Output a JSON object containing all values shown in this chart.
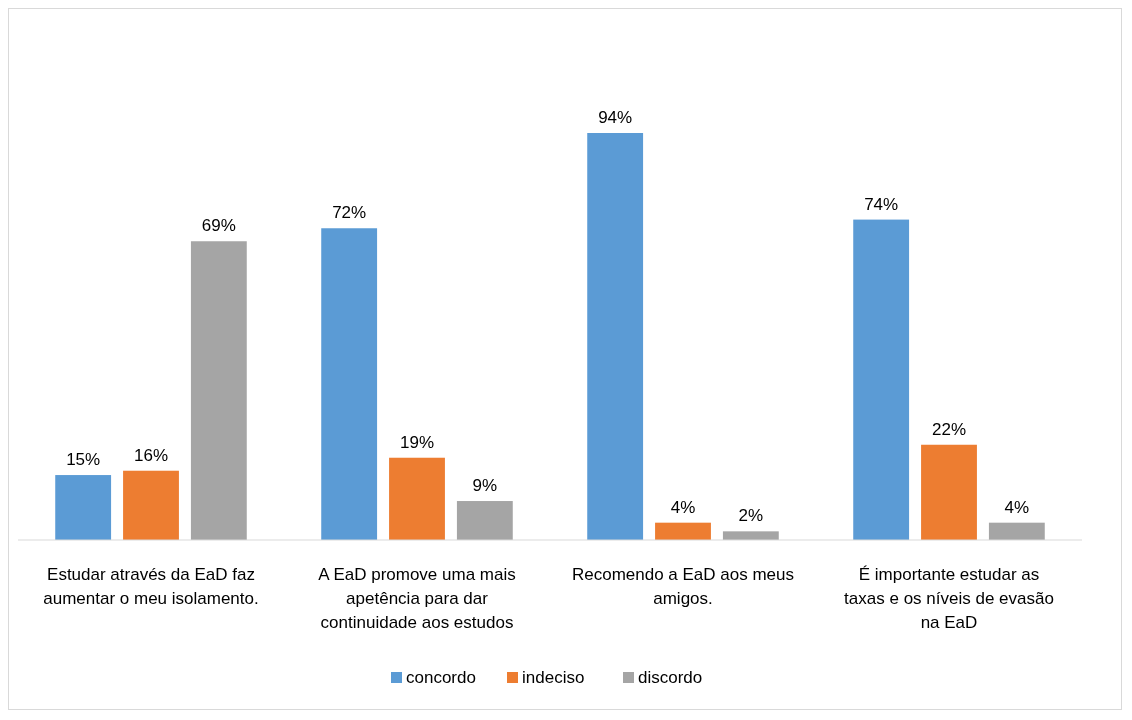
{
  "chart_data": {
    "type": "bar",
    "categories": [
      "Estudar através da EaD faz aumentar o meu isolamento.",
      "A EaD promove uma mais apetência para dar continuidade aos estudos",
      "Recomendo a EaD aos meus amigos.",
      "É importante estudar as taxas e os níveis de evasão na EaD"
    ],
    "series": [
      {
        "name": "concordo",
        "color": "#5b9bd5",
        "values": [
          15,
          72,
          94,
          74
        ],
        "value_labels": [
          "15%",
          "72%",
          "94%",
          "74%"
        ]
      },
      {
        "name": "indeciso",
        "color": "#ed7d31",
        "values": [
          16,
          19,
          4,
          22
        ],
        "value_labels": [
          "16%",
          "19%",
          "4%",
          "22%"
        ]
      },
      {
        "name": "discordo",
        "color": "#a5a5a5",
        "values": [
          69,
          9,
          2,
          4
        ],
        "value_labels": [
          "69%",
          "9%",
          "2%",
          "4%"
        ]
      }
    ],
    "tick_labels": "x",
    "legend": "bottom"
  }
}
